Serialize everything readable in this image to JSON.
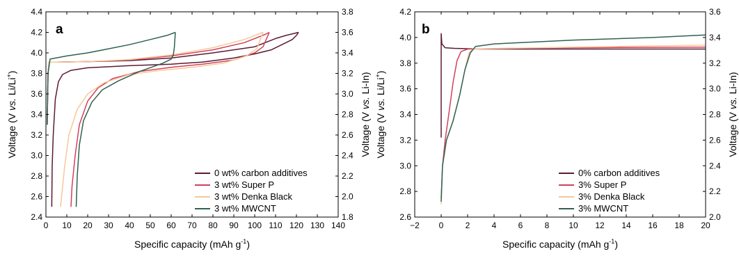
{
  "chart_data": [
    {
      "panel": "a",
      "type": "line",
      "xlabel": "Specific capacity (mAh g⁻¹)",
      "ylabel": "Voltage (V vs. Li/Li⁺)",
      "ylabel_right": "Voltage (V vs. Li-In)",
      "xlim": [
        0,
        140
      ],
      "ylim": [
        2.4,
        4.4
      ],
      "ylim_right": [
        1.8,
        3.8
      ],
      "x_ticks": [
        0,
        10,
        20,
        30,
        40,
        50,
        60,
        70,
        80,
        90,
        100,
        110,
        120,
        130,
        140
      ],
      "y_ticks": [
        2.4,
        2.6,
        2.8,
        3.0,
        3.2,
        3.4,
        3.6,
        3.8,
        4.0,
        4.2,
        4.4
      ],
      "y_ticks_right": [
        1.8,
        2.0,
        2.2,
        2.4,
        2.6,
        2.8,
        3.0,
        3.2,
        3.4,
        3.6,
        3.8
      ],
      "legend_position": "bottom-right",
      "grid": false,
      "series": [
        {
          "name": "0 wt% carbon additives",
          "color": "#5b1a33",
          "charge": [
            [
              0.6,
              3.3
            ],
            [
              1,
              3.8
            ],
            [
              1.5,
              3.91
            ],
            [
              5,
              3.91
            ],
            [
              20,
              3.915
            ],
            [
              40,
              3.925
            ],
            [
              60,
              3.95
            ],
            [
              80,
              4.0
            ],
            [
              100,
              4.06
            ],
            [
              110,
              4.14
            ],
            [
              115,
              4.17
            ],
            [
              119,
              4.19
            ],
            [
              121,
              4.2
            ]
          ],
          "discharge": [
            [
              121,
              4.2
            ],
            [
              120,
              4.17
            ],
            [
              118,
              4.13
            ],
            [
              115,
              4.1
            ],
            [
              112,
              4.07
            ],
            [
              108,
              4.03
            ],
            [
              100,
              3.99
            ],
            [
              90,
              3.95
            ],
            [
              75,
              3.91
            ],
            [
              60,
              3.89
            ],
            [
              40,
              3.875
            ],
            [
              20,
              3.855
            ],
            [
              12,
              3.83
            ],
            [
              8,
              3.79
            ],
            [
              6,
              3.72
            ],
            [
              4.5,
              3.55
            ],
            [
              3.5,
              3.2
            ],
            [
              3,
              2.9
            ],
            [
              2.8,
              2.5
            ]
          ]
        },
        {
          "name": "3 wt% Super P",
          "color": "#d2405a",
          "charge": [
            [
              0.6,
              3.3
            ],
            [
              1,
              3.8
            ],
            [
              1.5,
              3.91
            ],
            [
              5,
              3.91
            ],
            [
              20,
              3.915
            ],
            [
              40,
              3.93
            ],
            [
              60,
              3.97
            ],
            [
              80,
              4.03
            ],
            [
              95,
              4.1
            ],
            [
              105,
              4.18
            ],
            [
              107,
              4.2
            ]
          ],
          "discharge": [
            [
              107,
              4.2
            ],
            [
              104,
              4.06
            ],
            [
              100,
              4.0
            ],
            [
              90,
              3.93
            ],
            [
              75,
              3.89
            ],
            [
              60,
              3.86
            ],
            [
              45,
              3.82
            ],
            [
              32,
              3.75
            ],
            [
              25,
              3.66
            ],
            [
              20,
              3.53
            ],
            [
              16,
              3.3
            ],
            [
              14,
              3.0
            ],
            [
              12.5,
              2.7
            ],
            [
              12,
              2.5
            ]
          ]
        },
        {
          "name": "3 wt% Denka Black",
          "color": "#f6c89a",
          "charge": [
            [
              0.6,
              3.3
            ],
            [
              1,
              3.8
            ],
            [
              1.5,
              3.91
            ],
            [
              5,
              3.91
            ],
            [
              20,
              3.915
            ],
            [
              40,
              3.935
            ],
            [
              60,
              3.98
            ],
            [
              80,
              4.05
            ],
            [
              95,
              4.13
            ],
            [
              104,
              4.2
            ]
          ],
          "discharge": [
            [
              104,
              4.2
            ],
            [
              101,
              4.04
            ],
            [
              96,
              3.97
            ],
            [
              85,
              3.9
            ],
            [
              70,
              3.86
            ],
            [
              55,
              3.83
            ],
            [
              40,
              3.79
            ],
            [
              28,
              3.71
            ],
            [
              20,
              3.6
            ],
            [
              15,
              3.45
            ],
            [
              11,
              3.2
            ],
            [
              9,
              2.9
            ],
            [
              7.5,
              2.6
            ],
            [
              7,
              2.5
            ]
          ]
        },
        {
          "name": "3 wt% MWCNT",
          "color": "#2f6150",
          "charge": [
            [
              0.6,
              3.3
            ],
            [
              1,
              3.8
            ],
            [
              2,
              3.94
            ],
            [
              10,
              3.97
            ],
            [
              20,
              4.0
            ],
            [
              30,
              4.04
            ],
            [
              40,
              4.08
            ],
            [
              50,
              4.13
            ],
            [
              58,
              4.17
            ],
            [
              62,
              4.2
            ]
          ],
          "discharge": [
            [
              62,
              4.2
            ],
            [
              61.5,
              4.05
            ],
            [
              61,
              3.98
            ],
            [
              60,
              3.94
            ],
            [
              56,
              3.9
            ],
            [
              45,
              3.82
            ],
            [
              35,
              3.73
            ],
            [
              27,
              3.64
            ],
            [
              22,
              3.52
            ],
            [
              18,
              3.34
            ],
            [
              16,
              3.1
            ],
            [
              15,
              2.8
            ],
            [
              14.5,
              2.5
            ]
          ]
        }
      ]
    },
    {
      "panel": "b",
      "type": "line",
      "xlabel": "Specific capacity (mAh g⁻¹)",
      "ylabel": "Voltage (V vs. Li/Li⁺)",
      "ylabel_right": "Voltage (V vs. Li-In)",
      "xlim": [
        -2,
        20
      ],
      "ylim": [
        2.6,
        4.2
      ],
      "ylim_right": [
        2.0,
        3.6
      ],
      "x_ticks": [
        -2,
        0,
        2,
        4,
        6,
        8,
        10,
        12,
        14,
        16,
        18,
        20
      ],
      "y_ticks": [
        2.6,
        2.8,
        3.0,
        3.2,
        3.4,
        3.6,
        3.8,
        4.0,
        4.2
      ],
      "y_ticks_right": [
        2.0,
        2.2,
        2.4,
        2.6,
        2.8,
        3.0,
        3.2,
        3.4,
        3.6
      ],
      "legend_position": "bottom-right",
      "grid": false,
      "series": [
        {
          "name": "0% carbon additives",
          "color": "#5b1a33",
          "points": [
            [
              0,
              3.22
            ],
            [
              0,
              4.03
            ],
            [
              0.05,
              3.95
            ],
            [
              0.3,
              3.92
            ],
            [
              1,
              3.915
            ],
            [
              3,
              3.91
            ],
            [
              10,
              3.91
            ],
            [
              20,
              3.91
            ]
          ]
        },
        {
          "name": "3% Super P",
          "color": "#d2405a",
          "points": [
            [
              0,
              2.75
            ],
            [
              0.1,
              3.0
            ],
            [
              0.3,
              3.2
            ],
            [
              0.6,
              3.42
            ],
            [
              0.9,
              3.65
            ],
            [
              1.2,
              3.82
            ],
            [
              1.5,
              3.89
            ],
            [
              2,
              3.91
            ],
            [
              5,
              3.915
            ],
            [
              10,
              3.92
            ],
            [
              20,
              3.925
            ]
          ]
        },
        {
          "name": "3% Denka Black",
          "color": "#f6c89a",
          "points": [
            [
              0,
              2.7
            ],
            [
              0.1,
              3.0
            ],
            [
              0.4,
              3.2
            ],
            [
              0.9,
              3.35
            ],
            [
              1.4,
              3.55
            ],
            [
              1.8,
              3.75
            ],
            [
              2.1,
              3.88
            ],
            [
              2.4,
              3.91
            ],
            [
              5,
              3.915
            ],
            [
              10,
              3.925
            ],
            [
              20,
              3.94
            ]
          ]
        },
        {
          "name": "3% MWCNT",
          "color": "#2f6150",
          "points": [
            [
              0,
              2.72
            ],
            [
              0.1,
              3.0
            ],
            [
              0.4,
              3.2
            ],
            [
              0.9,
              3.35
            ],
            [
              1.4,
              3.55
            ],
            [
              1.8,
              3.75
            ],
            [
              2.2,
              3.88
            ],
            [
              2.6,
              3.93
            ],
            [
              4,
              3.95
            ],
            [
              10,
              3.98
            ],
            [
              16,
              4.0
            ],
            [
              20,
              4.02
            ]
          ]
        }
      ]
    }
  ]
}
